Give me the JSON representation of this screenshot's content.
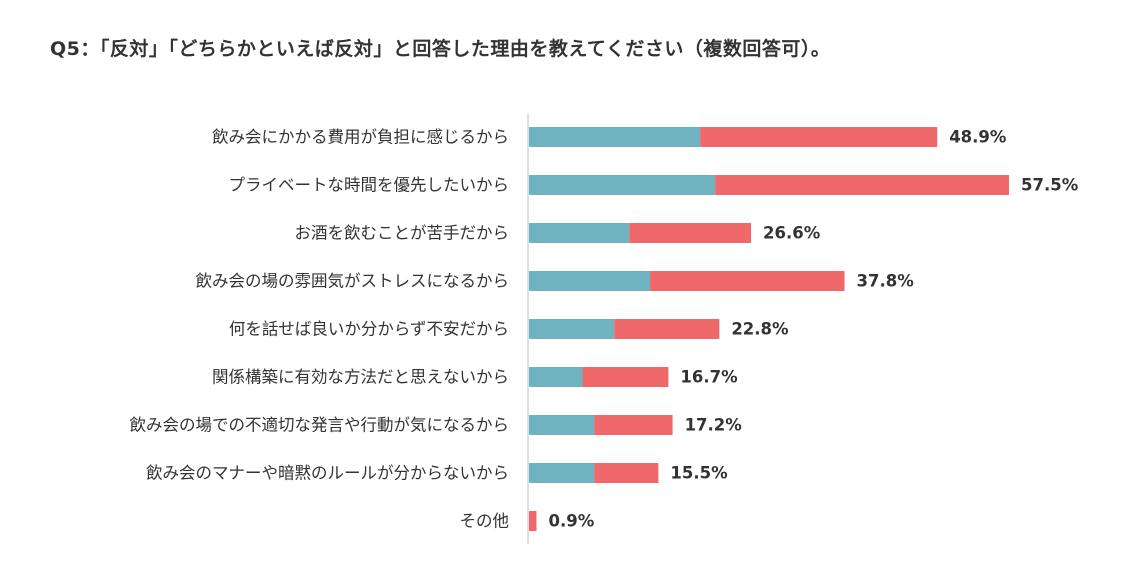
{
  "chart_data": {
    "type": "bar",
    "orientation": "horizontal",
    "stacked": true,
    "title": "Q5：「反対」「どちらかといえば反対」と回答した理由を教えてください（複数回答可）。",
    "categories": [
      "飲み会にかかる費用が負担に感じるから",
      "プライベートな時間を優先したいから",
      "お酒を飲むことが苦手だから",
      "飲み会の場の雰囲気がストレスになるから",
      "何を話せば良いか分からず不安だから",
      "関係構築に有効な方法だと思えないから",
      "飲み会の場での不適切な発言や行動が気になるから",
      "飲み会のマナーや暗黙のルールが分からないから",
      "その他"
    ],
    "series": [
      {
        "name": "segment-1",
        "color": "#6eb3bf",
        "values": [
          20.5,
          22.3,
          12.0,
          14.5,
          10.2,
          6.4,
          7.8,
          7.8,
          0.0
        ]
      },
      {
        "name": "segment-2",
        "color": "#f0696a",
        "values": [
          28.4,
          35.2,
          14.6,
          23.3,
          12.6,
          10.3,
          9.4,
          7.7,
          0.9
        ]
      }
    ],
    "totals": [
      48.9,
      57.5,
      26.6,
      37.8,
      22.8,
      16.7,
      17.2,
      15.5,
      0.9
    ],
    "value_labels": [
      "48.9%",
      "57.5%",
      "26.6%",
      "37.8%",
      "22.8%",
      "16.7%",
      "17.2%",
      "15.5%",
      "0.9%"
    ],
    "xlim": [
      0,
      57.5
    ],
    "xlabel": "",
    "ylabel": "",
    "grid": false,
    "legend": "none"
  }
}
